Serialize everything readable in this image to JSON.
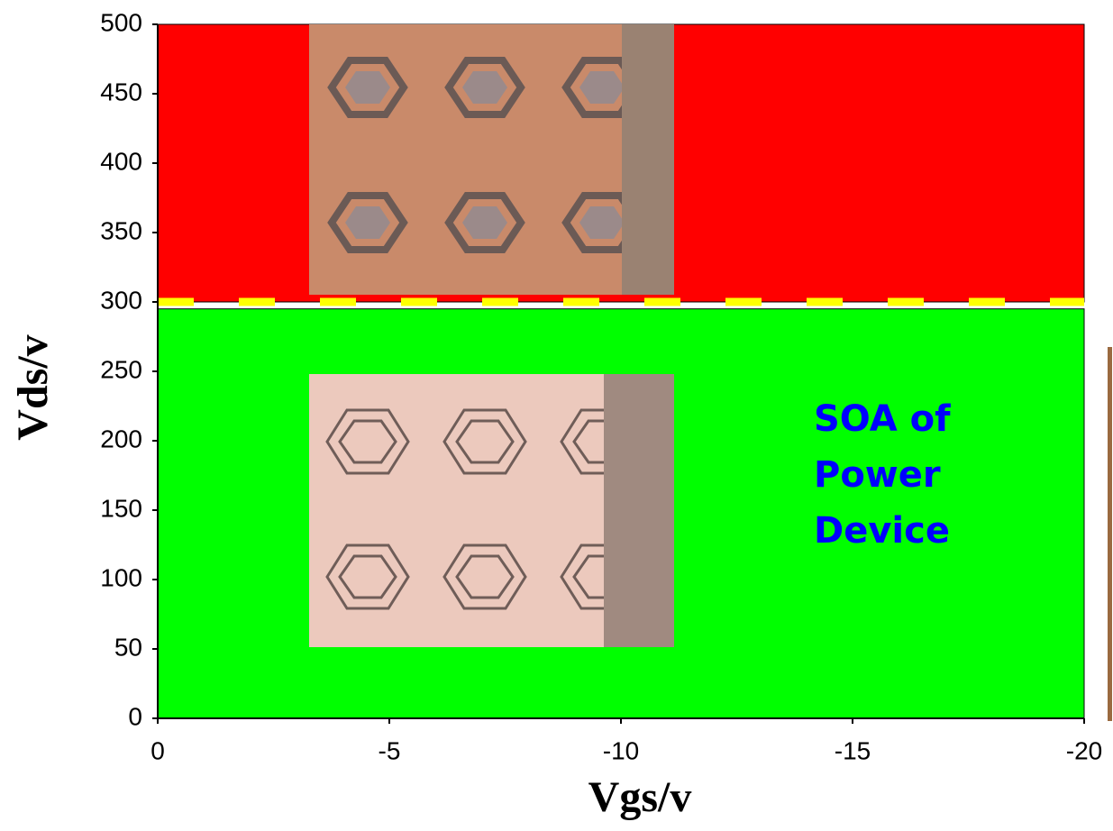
{
  "chart_data": {
    "type": "region",
    "x_label": "Vgs/v",
    "y_label": "Vds/v",
    "xlim": [
      0,
      -20
    ],
    "xticks": [
      0,
      -5,
      -10,
      -15,
      -20
    ],
    "ylim": [
      0,
      500
    ],
    "yticks": [
      0,
      50,
      100,
      150,
      200,
      250,
      300,
      350,
      400,
      450,
      500
    ],
    "regions": [
      {
        "y": [
          300,
          500
        ],
        "color": "#ff0000"
      },
      {
        "y": [
          0,
          295
        ],
        "color": "#00ff00"
      }
    ],
    "boundary": {
      "y": 300,
      "color": "#ffff00"
    },
    "annotation": {
      "lines": [
        "SOA of",
        "Power",
        "Device"
      ],
      "color": "#0000ff"
    }
  }
}
